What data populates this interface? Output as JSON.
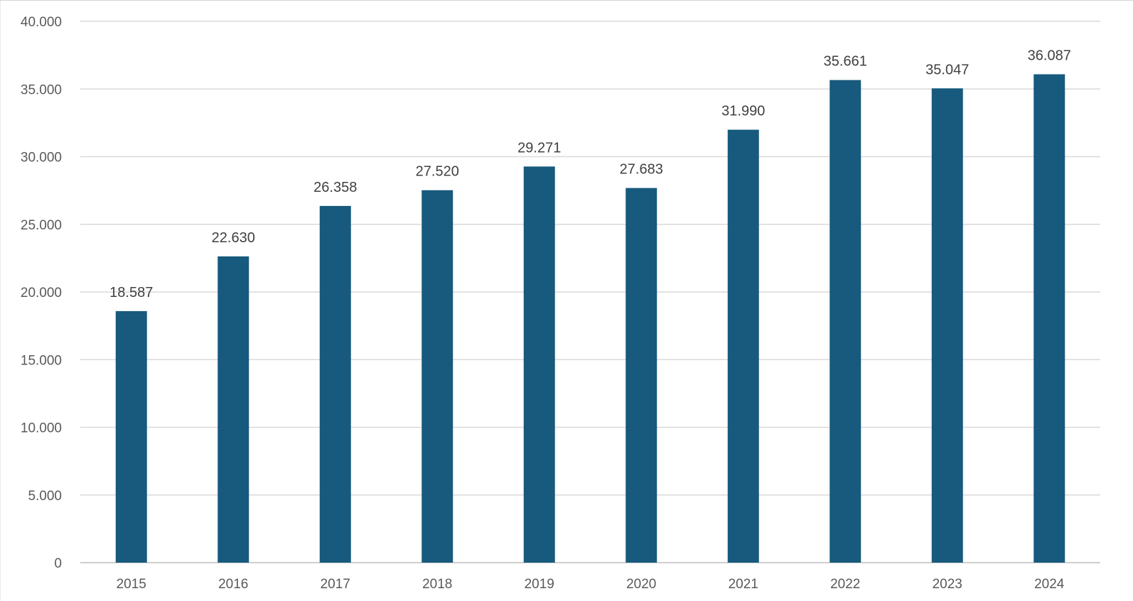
{
  "chart_data": {
    "type": "bar",
    "categories": [
      "2015",
      "2016",
      "2017",
      "2018",
      "2019",
      "2020",
      "2021",
      "2022",
      "2023",
      "2024"
    ],
    "values": [
      18587,
      22630,
      26358,
      27520,
      29271,
      27683,
      31990,
      35661,
      35047,
      36087
    ],
    "value_labels": [
      "18.587",
      "22.630",
      "26.358",
      "27.520",
      "29.271",
      "27.683",
      "31.990",
      "35.661",
      "35.047",
      "36.087"
    ],
    "y_ticks": [
      0,
      5000,
      10000,
      15000,
      20000,
      25000,
      30000,
      35000,
      40000
    ],
    "y_tick_labels": [
      "0",
      "5.000",
      "10.000",
      "15.000",
      "20.000",
      "25.000",
      "30.000",
      "35.000",
      "40.000"
    ],
    "ylim": [
      0,
      40000
    ],
    "title": "",
    "xlabel": "",
    "ylabel": "",
    "grid": true,
    "legend": "none",
    "colors": {
      "bar": "#175a7d",
      "grid": "#d9d9d9",
      "axis": "#bfbfbf",
      "tick_text": "#595959",
      "label_text": "#404040"
    }
  }
}
